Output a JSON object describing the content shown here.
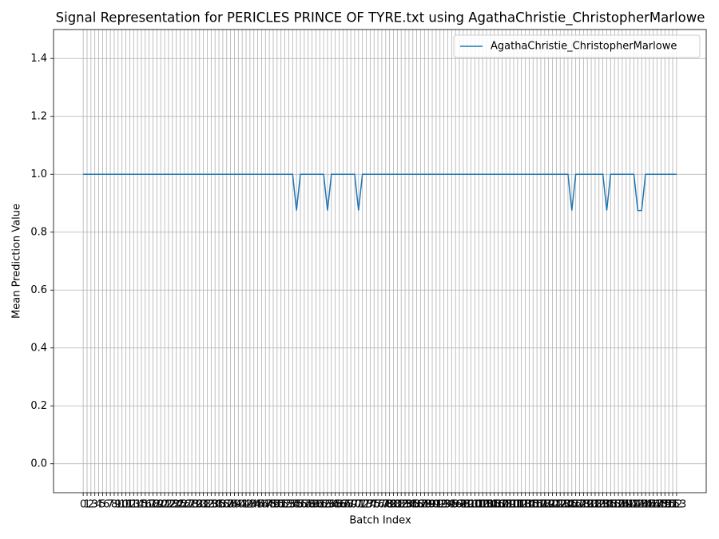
{
  "chart_data": {
    "type": "line",
    "title": "Signal Representation for PERICLES PRINCE OF TYRE.txt using AgathaChristie_ChristopherMarlowe",
    "x_label": "Batch Index",
    "y_label": "Mean Prediction Value",
    "x": [
      0,
      1,
      2,
      3,
      4,
      5,
      6,
      7,
      8,
      9,
      10,
      11,
      12,
      13,
      14,
      15,
      16,
      17,
      18,
      19,
      20,
      21,
      22,
      23,
      24,
      25,
      26,
      27,
      28,
      29,
      30,
      31,
      32,
      33,
      34,
      35,
      36,
      37,
      38,
      39,
      40,
      41,
      42,
      43,
      44,
      45,
      46,
      47,
      48,
      49,
      50,
      51,
      52,
      53,
      54,
      55,
      56,
      57,
      58,
      59,
      60,
      61,
      62,
      63,
      64,
      65,
      66,
      67,
      68,
      69,
      70,
      71,
      72,
      73,
      74,
      75,
      76,
      77,
      78,
      79,
      80,
      81,
      82,
      83,
      84,
      85,
      86,
      87,
      88,
      89,
      90,
      91,
      92,
      93,
      94,
      95,
      96,
      97,
      98,
      99,
      100,
      101,
      102,
      103,
      104,
      105,
      106,
      107,
      108,
      109,
      110,
      111,
      112,
      113,
      114,
      115,
      116,
      117,
      118,
      119,
      120,
      121,
      122,
      123,
      124,
      125,
      126,
      127,
      128,
      129,
      130,
      131,
      132,
      133,
      134,
      135,
      136,
      137,
      138,
      139,
      140,
      141,
      142,
      143,
      144,
      145,
      146,
      147,
      148,
      149,
      150,
      151,
      152,
      153
    ],
    "series": [
      {
        "name": "AgathaChristie_ChristopherMarlowe",
        "color": "#1f77b4",
        "values": [
          1,
          1,
          1,
          1,
          1,
          1,
          1,
          1,
          1,
          1,
          1,
          1,
          1,
          1,
          1,
          1,
          1,
          1,
          1,
          1,
          1,
          1,
          1,
          1,
          1,
          1,
          1,
          1,
          1,
          1,
          1,
          1,
          1,
          1,
          1,
          1,
          1,
          1,
          1,
          1,
          1,
          1,
          1,
          1,
          1,
          1,
          1,
          1,
          1,
          1,
          1,
          1,
          1,
          1,
          1,
          0.875,
          1,
          1,
          1,
          1,
          1,
          1,
          1,
          0.875,
          1,
          1,
          1,
          1,
          1,
          1,
          1,
          0.875,
          1,
          1,
          1,
          1,
          1,
          1,
          1,
          1,
          1,
          1,
          1,
          1,
          1,
          1,
          1,
          1,
          1,
          1,
          1,
          1,
          1,
          1,
          1,
          1,
          1,
          1,
          1,
          1,
          1,
          1,
          1,
          1,
          1,
          1,
          1,
          1,
          1,
          1,
          1,
          1,
          1,
          1,
          1,
          1,
          1,
          1,
          1,
          1,
          1,
          1,
          1,
          1,
          1,
          1,
          0.875,
          1,
          1,
          1,
          1,
          1,
          1,
          1,
          1,
          0.875,
          1,
          1,
          1,
          1,
          1,
          1,
          1,
          0.875,
          0.875,
          1,
          1,
          1,
          1,
          1,
          1,
          1,
          1,
          1
        ]
      }
    ],
    "xlim": [
      -7.65,
      160.65
    ],
    "xticks": [
      0,
      1,
      2,
      3,
      4,
      5,
      6,
      7,
      8,
      9,
      10,
      11,
      12,
      13,
      14,
      15,
      16,
      17,
      18,
      19,
      20,
      21,
      22,
      23,
      24,
      25,
      26,
      27,
      28,
      29,
      30,
      31,
      32,
      33,
      34,
      35,
      36,
      37,
      38,
      39,
      40,
      41,
      42,
      43,
      44,
      45,
      46,
      47,
      48,
      49,
      50,
      51,
      52,
      53,
      54,
      55,
      56,
      57,
      58,
      59,
      60,
      61,
      62,
      63,
      64,
      65,
      66,
      67,
      68,
      69,
      70,
      71,
      72,
      73,
      74,
      75,
      76,
      77,
      78,
      79,
      80,
      81,
      82,
      83,
      84,
      85,
      86,
      87,
      88,
      89,
      90,
      91,
      92,
      93,
      94,
      95,
      96,
      97,
      98,
      99,
      100,
      101,
      102,
      103,
      104,
      105,
      106,
      107,
      108,
      109,
      110,
      111,
      112,
      113,
      114,
      115,
      116,
      117,
      118,
      119,
      120,
      121,
      122,
      123,
      124,
      125,
      126,
      127,
      128,
      129,
      130,
      131,
      132,
      133,
      134,
      135,
      136,
      137,
      138,
      139,
      140,
      141,
      142,
      143,
      144,
      145,
      146,
      147,
      148,
      149,
      150,
      151,
      152,
      153
    ],
    "ylim": [
      -0.1,
      1.5
    ],
    "yticks": [
      {
        "value": 0,
        "label": "0.0"
      },
      {
        "value": 0.2,
        "label": "0.2"
      },
      {
        "value": 0.4,
        "label": "0.4"
      },
      {
        "value": 0.6,
        "label": "0.6"
      },
      {
        "value": 0.8,
        "label": "0.8"
      },
      {
        "value": 1,
        "label": "1.0"
      },
      {
        "value": 1.2,
        "label": "1.2"
      },
      {
        "value": 1.4,
        "label": "1.4"
      }
    ],
    "grid": true,
    "legend": "upper right"
  }
}
